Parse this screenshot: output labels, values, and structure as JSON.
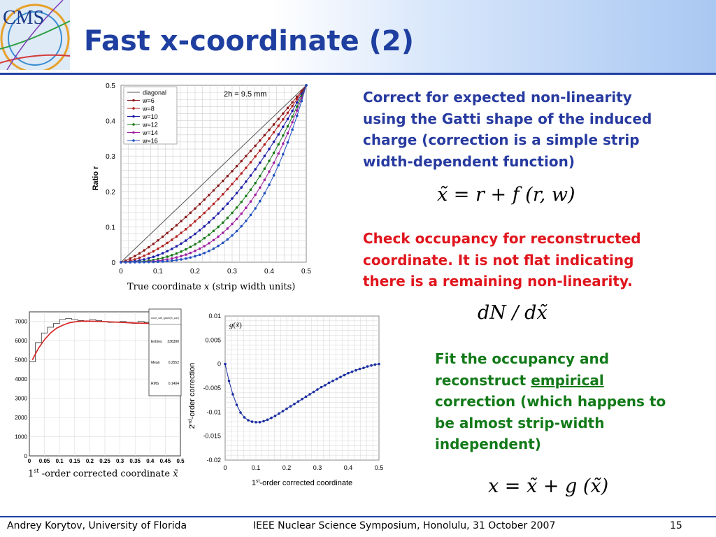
{
  "slide": {
    "title": "Fast x-coordinate (2)",
    "logo_text": "CMS",
    "para1": [
      "Correct for expected non-linearity",
      "using the Gatti shape of the induced",
      "charge (correction is a simple strip",
      "width-dependent function)"
    ],
    "formula1": "x̃ = r + f (r, w)",
    "para2": [
      "Check occupancy for reconstructed",
      "coordinate. It is not flat indicating",
      "there is a remaining non-linearity."
    ],
    "formula2": "dN / dx̃",
    "para3": {
      "line1": "Fit the occupancy and",
      "line2_pre": "reconstruct ",
      "line2_underlined": "empirical",
      "line3": "correction (which happens to",
      "line4": "be almost strip-width",
      "line5": "independent)"
    },
    "formula3": "x = x̃ + g (x̃)",
    "footer": {
      "left": "Andrey Korytov, University of Florida",
      "center": "IEEE Nuclear Science Symposium, Honolulu, 31 October 2007",
      "page": "15"
    },
    "colors": {
      "title": "#1f3fa0",
      "blue_text": "#273aa0",
      "red_text": "#e0151d",
      "green_text": "#137a19"
    }
  },
  "chart_data": [
    {
      "type": "line",
      "annotation": "2h = 9.5 mm",
      "ylabel": "Ratio r",
      "caption_pre": "True coordinate ",
      "caption_var": "x",
      "caption_post": " (strip width units)",
      "xlim": [
        0,
        0.5
      ],
      "ylim": [
        0,
        0.5
      ],
      "x_ticks": [
        "0",
        "0.1",
        "0.2",
        "0.3",
        "0.4",
        "0.5"
      ],
      "y_ticks": [
        "0",
        "0.1",
        "0.2",
        "0.3",
        "0.4",
        "0.5"
      ],
      "legend_position": "top-left",
      "grid": true,
      "series": [
        {
          "name": "diagonal",
          "exponent": 1,
          "color": "#555555",
          "marker": false
        },
        {
          "name": "w=6",
          "exponent": 1.3,
          "color": "#8b1a1a",
          "marker": true
        },
        {
          "name": "w=8",
          "exponent": 1.6,
          "color": "#b32020",
          "marker": true
        },
        {
          "name": "w=10",
          "exponent": 2.0,
          "color": "#1a1aa8",
          "marker": true
        },
        {
          "name": "w=12",
          "exponent": 2.5,
          "color": "#1a7a1a",
          "marker": true
        },
        {
          "name": "w=14",
          "exponent": 3.0,
          "color": "#a020a0",
          "marker": true
        },
        {
          "name": "w=16",
          "exponent": 3.7,
          "color": "#2050c0",
          "marker": true
        }
      ]
    },
    {
      "type": "bar",
      "caption_sup": "st",
      "caption_pre": "1",
      "caption_post": " -order corrected coordinate ",
      "caption_var": "x̃",
      "xlim": [
        0,
        0.5
      ],
      "ylim": [
        0,
        7500
      ],
      "x_ticks": [
        "0",
        "0.05",
        "0.1",
        "0.15",
        "0.2",
        "0.25",
        "0.3",
        "0.35",
        "0.4",
        "0.45",
        "0.5"
      ],
      "y_ticks": [
        "0",
        "1000",
        "2000",
        "3000",
        "4000",
        "5000",
        "6000",
        "7000"
      ],
      "stats": {
        "name": "Xcorl_1d0_Qaver(X_corr)",
        "entries_label": "Entries",
        "entries": "336390",
        "mean_label": "Mean",
        "mean": "0.2552",
        "rms_label": "RMS",
        "rms": "0.1404"
      },
      "histogram": [
        4900,
        5900,
        6400,
        6700,
        6900,
        7100,
        7150,
        7100,
        7050,
        7000,
        7100,
        7050,
        7000,
        6950,
        6950,
        7000,
        6950,
        6900,
        7000,
        6950,
        6950,
        6900,
        6950,
        6850,
        6900
      ],
      "fit": [
        5000,
        5600,
        6050,
        6400,
        6650,
        6800,
        6920,
        6980,
        7010,
        7020,
        7010,
        7000,
        6990,
        6975,
        6960,
        6945,
        6930,
        6920,
        6910,
        6900,
        6895,
        6890,
        6885,
        6880,
        6875
      ]
    },
    {
      "type": "scatter",
      "label_func": "g",
      "label_arg": "x̃",
      "ylabel_pre": "2",
      "ylabel_sup": "nd",
      "ylabel_post": "-order correction",
      "xlabel_pre": "1",
      "xlabel_sup": "st",
      "xlabel_post": "-order corrected coordinate",
      "xlim": [
        0,
        0.5
      ],
      "ylim": [
        -0.02,
        0.01
      ],
      "x_ticks": [
        "0",
        "0.1",
        "0.2",
        "0.3",
        "0.4",
        "0.5"
      ],
      "y_ticks": [
        "0.01",
        "0.005",
        "0",
        "-0.005",
        "-0.01",
        "-0.015",
        "-0.02"
      ],
      "x": [
        0,
        0.0125,
        0.025,
        0.0375,
        0.05,
        0.0625,
        0.075,
        0.0875,
        0.1,
        0.1125,
        0.125,
        0.1375,
        0.15,
        0.1625,
        0.175,
        0.1875,
        0.2,
        0.2125,
        0.225,
        0.2375,
        0.25,
        0.2625,
        0.275,
        0.2875,
        0.3,
        0.3125,
        0.325,
        0.3375,
        0.35,
        0.3625,
        0.375,
        0.3875,
        0.4,
        0.4125,
        0.425,
        0.4375,
        0.45,
        0.4625,
        0.475,
        0.4875,
        0.5
      ],
      "y": [
        0,
        -0.0035,
        -0.0063,
        -0.0085,
        -0.0101,
        -0.0111,
        -0.0117,
        -0.012,
        -0.0121,
        -0.0121,
        -0.0119,
        -0.0116,
        -0.0112,
        -0.0108,
        -0.0103,
        -0.0098,
        -0.0093,
        -0.0088,
        -0.0083,
        -0.0078,
        -0.0073,
        -0.0068,
        -0.0063,
        -0.0058,
        -0.0053,
        -0.0048,
        -0.0044,
        -0.0039,
        -0.0035,
        -0.0031,
        -0.0027,
        -0.0023,
        -0.0019,
        -0.0016,
        -0.0013,
        -0.001,
        -0.0008,
        -0.0005,
        -0.0003,
        -0.0001,
        0
      ]
    }
  ]
}
